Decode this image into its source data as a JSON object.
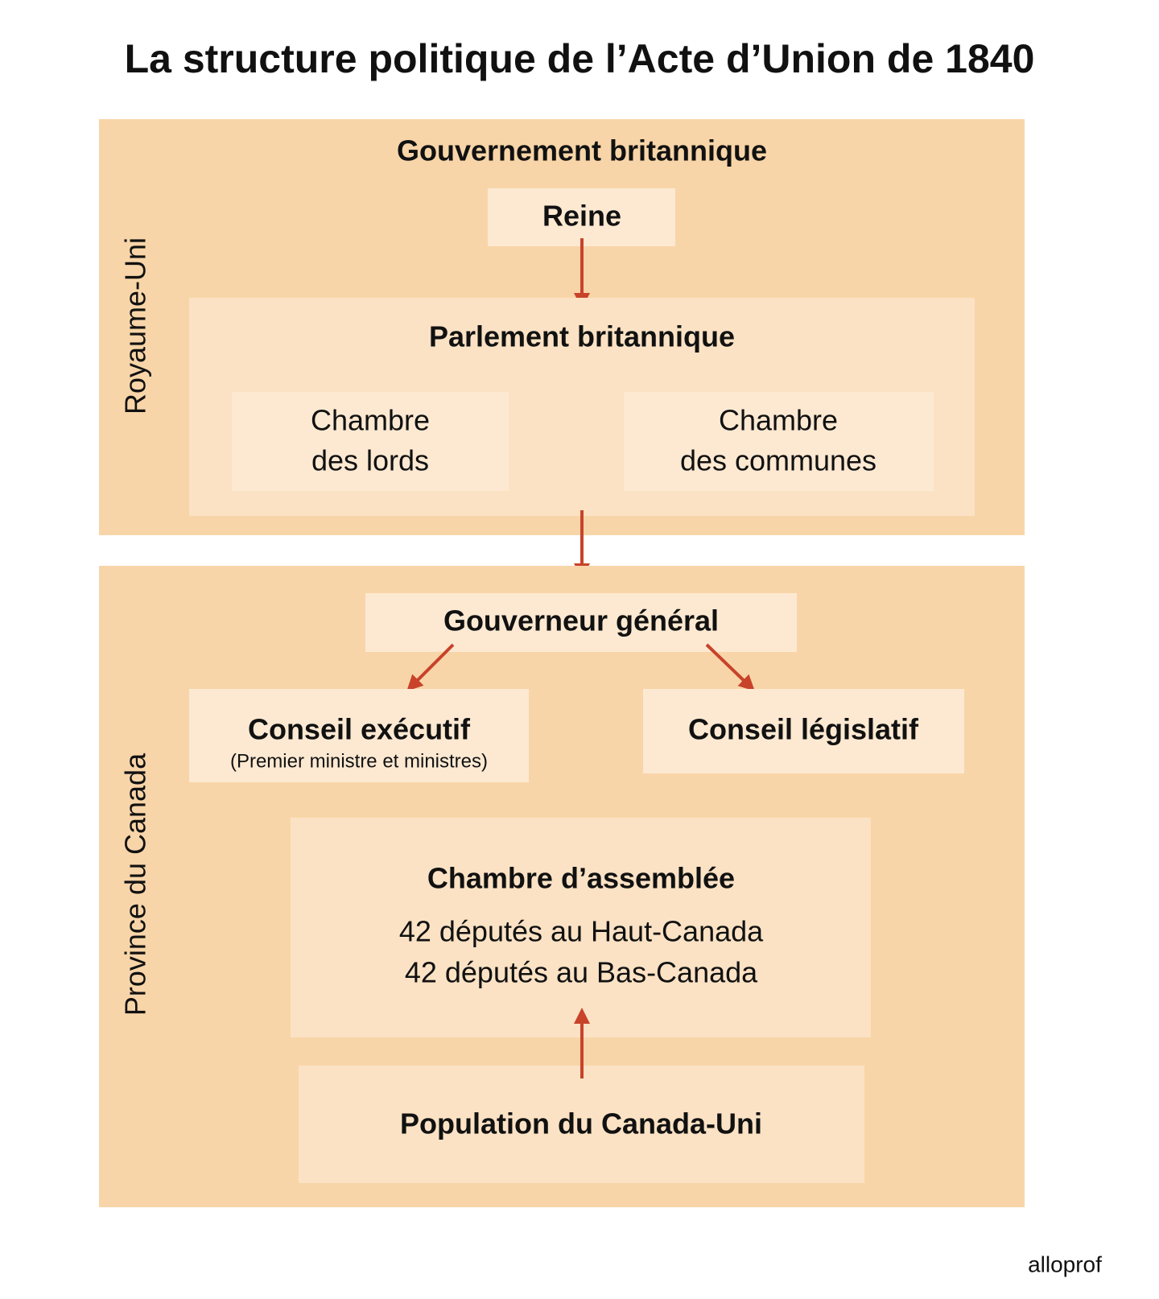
{
  "title": "La structure politique de l’Acte d’Union de 1840",
  "royaume_uni": {
    "side_label": "Royaume-Uni",
    "heading": "Gouvernement britannique",
    "queen": "Reine",
    "parliament": {
      "heading": "Parlement britannique",
      "lords": [
        "Chambre",
        "des lords"
      ],
      "commons": [
        "Chambre",
        "des communes"
      ]
    }
  },
  "province": {
    "side_label": "Province du Canada",
    "governor": "Gouverneur général",
    "executive": {
      "heading": "Conseil exécutif",
      "note": "(Premier ministre et ministres)"
    },
    "legislative": {
      "heading": "Conseil législatif"
    },
    "assembly": {
      "heading": "Chambre d’assemblée",
      "lines": [
        "42 députés au Haut-Canada",
        "42 députés au Bas-Canada"
      ]
    },
    "population": "Population du Canada-Uni"
  },
  "logo": "alloprof"
}
